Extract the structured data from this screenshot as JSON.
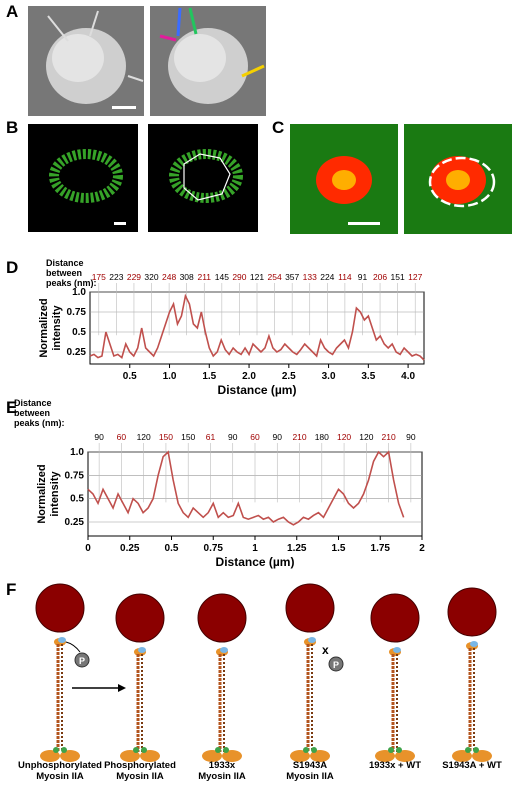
{
  "panels": {
    "a": "A",
    "b": "B",
    "c": "C",
    "d": "D",
    "e": "E",
    "f": "F"
  },
  "chart_header": {
    "line1": "Distance",
    "line2": "between",
    "line3": "peaks (nm):"
  },
  "chart_data": [
    {
      "type": "line",
      "panel": "D",
      "xlabel": "Distance (µm)",
      "ylabel": "Normalized intensity",
      "xlim": [
        0,
        4.2
      ],
      "ylim": [
        0.1,
        1.0
      ],
      "xticks": [
        "0.5",
        "1.0",
        "1.5",
        "2.0",
        "2.5",
        "3.0",
        "3.5",
        "4.0"
      ],
      "yticks": [
        "1.0",
        "0.75",
        "0.5",
        "0.25"
      ],
      "peak_distances": [
        "175",
        "223",
        "229",
        "320",
        "248",
        "308",
        "211",
        "145",
        "290",
        "121",
        "254",
        "357",
        "133",
        "224",
        "114",
        "91",
        "206",
        "151",
        "127"
      ],
      "peak_colors": [
        "red",
        "black",
        "red",
        "black",
        "red",
        "black",
        "red",
        "black",
        "red",
        "black",
        "red",
        "black",
        "red",
        "black",
        "red",
        "black",
        "red",
        "black",
        "red"
      ],
      "x": [
        0,
        0.05,
        0.1,
        0.15,
        0.2,
        0.25,
        0.3,
        0.35,
        0.4,
        0.45,
        0.5,
        0.55,
        0.6,
        0.65,
        0.7,
        0.75,
        0.8,
        0.85,
        0.9,
        0.95,
        1.0,
        1.05,
        1.1,
        1.15,
        1.2,
        1.25,
        1.3,
        1.35,
        1.4,
        1.45,
        1.5,
        1.55,
        1.6,
        1.65,
        1.7,
        1.75,
        1.8,
        1.85,
        1.9,
        1.95,
        2.0,
        2.05,
        2.1,
        2.15,
        2.2,
        2.25,
        2.3,
        2.35,
        2.4,
        2.45,
        2.5,
        2.55,
        2.6,
        2.65,
        2.7,
        2.75,
        2.8,
        2.85,
        2.9,
        2.95,
        3.0,
        3.05,
        3.1,
        3.15,
        3.2,
        3.25,
        3.3,
        3.35,
        3.4,
        3.45,
        3.5,
        3.55,
        3.6,
        3.65,
        3.7,
        3.75,
        3.8,
        3.85,
        3.9,
        3.95,
        4.0,
        4.05,
        4.1,
        4.15,
        4.2
      ],
      "y": [
        0.2,
        0.22,
        0.18,
        0.2,
        0.5,
        0.35,
        0.2,
        0.22,
        0.18,
        0.35,
        0.25,
        0.2,
        0.3,
        0.55,
        0.3,
        0.25,
        0.2,
        0.3,
        0.45,
        0.6,
        0.75,
        0.85,
        0.6,
        0.7,
        0.95,
        0.85,
        0.6,
        0.55,
        0.75,
        0.5,
        0.3,
        0.2,
        0.25,
        0.4,
        0.28,
        0.22,
        0.3,
        0.25,
        0.22,
        0.3,
        0.22,
        0.35,
        0.3,
        0.25,
        0.3,
        0.45,
        0.3,
        0.25,
        0.28,
        0.35,
        0.3,
        0.25,
        0.22,
        0.28,
        0.35,
        0.3,
        0.25,
        0.2,
        0.4,
        0.3,
        0.25,
        0.22,
        0.3,
        0.35,
        0.4,
        0.3,
        0.5,
        0.8,
        0.75,
        0.65,
        0.7,
        0.55,
        0.4,
        0.45,
        0.35,
        0.3,
        0.35,
        0.25,
        0.22,
        0.3,
        0.25,
        0.2,
        0.22,
        0.2,
        0.15
      ]
    },
    {
      "type": "line",
      "panel": "E",
      "xlabel": "Distance (µm)",
      "ylabel": "Normalized intensity",
      "xlim": [
        0,
        2.0
      ],
      "ylim": [
        0.1,
        1.0
      ],
      "xticks": [
        "0",
        "0.25",
        "0.5",
        "0.75",
        "1",
        "1.25",
        "1.5",
        "1.75",
        "2"
      ],
      "yticks": [
        "1.0",
        "0.75",
        "0.5",
        "0.25"
      ],
      "peak_distances": [
        "90",
        "60",
        "120",
        "150",
        "150",
        "61",
        "90",
        "60",
        "90",
        "210",
        "180",
        "120",
        "120",
        "210",
        "90"
      ],
      "peak_colors": [
        "black",
        "red",
        "black",
        "red",
        "black",
        "red",
        "black",
        "red",
        "black",
        "red",
        "black",
        "red",
        "black",
        "red",
        "black"
      ],
      "x": [
        0,
        0.03,
        0.06,
        0.09,
        0.12,
        0.15,
        0.18,
        0.21,
        0.24,
        0.27,
        0.3,
        0.33,
        0.36,
        0.39,
        0.42,
        0.45,
        0.48,
        0.51,
        0.54,
        0.57,
        0.6,
        0.63,
        0.66,
        0.69,
        0.72,
        0.75,
        0.78,
        0.81,
        0.84,
        0.87,
        0.9,
        0.93,
        0.96,
        0.99,
        1.02,
        1.05,
        1.08,
        1.11,
        1.14,
        1.17,
        1.2,
        1.23,
        1.26,
        1.29,
        1.32,
        1.35,
        1.38,
        1.41,
        1.44,
        1.47,
        1.5,
        1.53,
        1.56,
        1.59,
        1.62,
        1.65,
        1.68,
        1.71,
        1.74,
        1.77,
        1.8,
        1.83,
        1.86,
        1.89
      ],
      "y": [
        0.6,
        0.55,
        0.45,
        0.6,
        0.5,
        0.4,
        0.55,
        0.45,
        0.35,
        0.5,
        0.45,
        0.35,
        0.4,
        0.5,
        0.75,
        0.95,
        1.0,
        0.7,
        0.45,
        0.35,
        0.3,
        0.4,
        0.35,
        0.3,
        0.35,
        0.45,
        0.3,
        0.35,
        0.3,
        0.32,
        0.45,
        0.3,
        0.28,
        0.3,
        0.32,
        0.28,
        0.3,
        0.25,
        0.28,
        0.3,
        0.25,
        0.22,
        0.25,
        0.3,
        0.28,
        0.32,
        0.35,
        0.3,
        0.4,
        0.5,
        0.6,
        0.55,
        0.45,
        0.4,
        0.45,
        0.55,
        0.7,
        0.9,
        1.0,
        0.95,
        1.0,
        0.7,
        0.45,
        0.3
      ]
    }
  ],
  "schematic_labels": [
    [
      "Unphosphorylated",
      "Myosin IIA"
    ],
    [
      "Phosphorylated",
      "Myosin IIA"
    ],
    [
      "1933x",
      "Myosin IIA"
    ],
    [
      "S1943A",
      "Myosin IIA"
    ],
    [
      "1933x + WT",
      ""
    ],
    [
      "S1943A + WT",
      ""
    ]
  ],
  "phospho_symbol": "P",
  "block_symbol": "x",
  "colors": {
    "line": "#c0504d",
    "red_label": "#a00000",
    "bead": "#8b0000"
  }
}
